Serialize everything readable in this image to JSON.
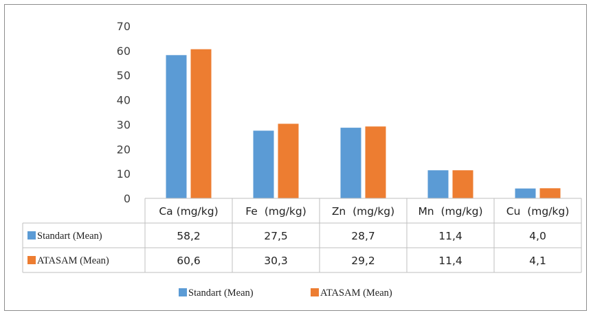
{
  "chart_data": {
    "type": "bar",
    "categories": [
      "Ca (mg/kg)",
      "Fe  (mg/kg)",
      "Zn  (mg/kg)",
      "Mn  (mg/kg)",
      "Cu  (mg/kg)"
    ],
    "series": [
      {
        "name": "Standart (Mean)",
        "values": [
          58.2,
          27.5,
          28.7,
          11.4,
          4.0
        ],
        "labels": [
          "58,2",
          "27,5",
          "28,7",
          "11,4",
          "4,0"
        ],
        "color": "#5b9bd5"
      },
      {
        "name": "ATASAM (Mean)",
        "values": [
          60.6,
          30.3,
          29.2,
          11.4,
          4.1
        ],
        "labels": [
          "60,6",
          "30,3",
          "29,2",
          "11,4",
          "4,1"
        ],
        "color": "#ed7d31"
      }
    ],
    "yticks": [
      "0",
      "10",
      "20",
      "30",
      "40",
      "50",
      "60",
      "70"
    ],
    "ylim": [
      0,
      70
    ],
    "grid": false,
    "data_table": true,
    "legend_position": "bottom"
  }
}
